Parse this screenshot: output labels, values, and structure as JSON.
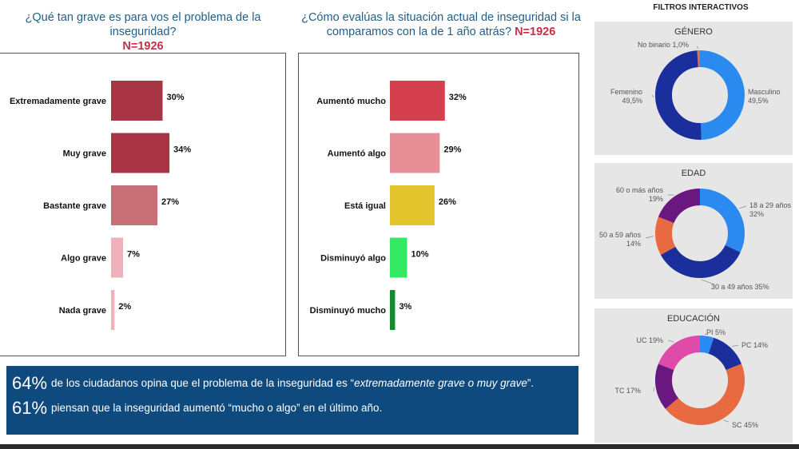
{
  "left_chart": {
    "question": "¿Qué tan grave es para vos el problema de la inseguridad?",
    "n_label": "N=1926",
    "categories": [
      "Extremadamente grave",
      "Muy grave",
      "Bastante grave",
      "Algo grave",
      "Nada grave"
    ],
    "values": [
      30,
      34,
      27,
      7,
      2
    ],
    "value_labels": [
      "30%",
      "34%",
      "27%",
      "7%",
      "2%"
    ],
    "colors": [
      "#a83344",
      "#a83344",
      "#c96f78",
      "#efb1bb",
      "#efb1bb"
    ]
  },
  "right_chart": {
    "question_line1": "¿Cómo evalúas la situación actual de inseguridad si la",
    "question_line2": "comparamos con la de 1 año atrás?",
    "n_label": "N=1926",
    "categories": [
      "Aumentó mucho",
      "Aumentó algo",
      "Está igual",
      "Disminuyó algo",
      "Disminuyó mucho"
    ],
    "values": [
      32,
      29,
      26,
      10,
      3
    ],
    "value_labels": [
      "32%",
      "29%",
      "26%",
      "10%",
      "3%"
    ],
    "colors": [
      "#d5404e",
      "#e68f97",
      "#e3c42c",
      "#35ea63",
      "#148a2e"
    ]
  },
  "summary": {
    "line1_value": "64%",
    "line1_text": "de los ciudadanos opina que el problema de la inseguridad es “",
    "line1_italic": "extremadamente grave o muy grave",
    "line1_end": "”.",
    "line2_value": "61%",
    "line2_text": "piensan que la inseguridad aumentó “mucho o algo” en el último año."
  },
  "filters": {
    "title": "FILTROS INTERACTIVOS",
    "genero": {
      "title": "GÉNERO",
      "segments": [
        {
          "label": "Masculino",
          "value_label": "49,5%",
          "value": 49.5,
          "color": "#2a8af0"
        },
        {
          "label": "Femenino",
          "value_label": "49,5%",
          "value": 49.5,
          "color": "#1b2f9c"
        },
        {
          "label": "No binario",
          "value_label": "1,0%",
          "value": 1.0,
          "color": "#e86a40"
        }
      ]
    },
    "edad": {
      "title": "EDAD",
      "segments": [
        {
          "label": "18 a 29 años",
          "value_label": "32%",
          "value": 32,
          "color": "#2a8af0"
        },
        {
          "label": "30 a 49 años",
          "value_label": "35%",
          "value": 35,
          "color": "#1b2f9c"
        },
        {
          "label": "50 a 59 años",
          "value_label": "14%",
          "value": 14,
          "color": "#e86a40"
        },
        {
          "label": "60 o más años",
          "value_label": "19%",
          "value": 19,
          "color": "#6a1880"
        }
      ]
    },
    "educacion": {
      "title": "EDUCACIÓN",
      "segments": [
        {
          "label": "PI",
          "value_label": "5%",
          "value": 5,
          "color": "#2a8af0"
        },
        {
          "label": "PC",
          "value_label": "14%",
          "value": 14,
          "color": "#1b2f9c"
        },
        {
          "label": "SC",
          "value_label": "45%",
          "value": 45,
          "color": "#e86a40"
        },
        {
          "label": "TC",
          "value_label": "17%",
          "value": 17,
          "color": "#6a1880"
        },
        {
          "label": "UC",
          "value_label": "19%",
          "value": 19,
          "color": "#e04aa8"
        }
      ]
    }
  },
  "chart_data": [
    {
      "type": "bar",
      "title": "¿Qué tan grave es para vos el problema de la inseguridad?",
      "categories": [
        "Extremadamente grave",
        "Muy grave",
        "Bastante grave",
        "Algo grave",
        "Nada grave"
      ],
      "values": [
        30,
        34,
        27,
        7,
        2
      ]
    },
    {
      "type": "bar",
      "title": "¿Cómo evalúas la situación actual de inseguridad si la comparamos con la de 1 año atrás?",
      "categories": [
        "Aumentó mucho",
        "Aumentó algo",
        "Está igual",
        "Disminuyó algo",
        "Disminuyó mucho"
      ],
      "values": [
        32,
        29,
        26,
        10,
        3
      ]
    },
    {
      "type": "pie",
      "title": "GÉNERO",
      "categories": [
        "Masculino",
        "Femenino",
        "No binario"
      ],
      "values": [
        49.5,
        49.5,
        1.0
      ]
    },
    {
      "type": "pie",
      "title": "EDAD",
      "categories": [
        "18 a 29 años",
        "30 a 49 años",
        "50 a 59 años",
        "60 o más años"
      ],
      "values": [
        32,
        35,
        14,
        19
      ]
    },
    {
      "type": "pie",
      "title": "EDUCACIÓN",
      "categories": [
        "PI",
        "PC",
        "SC",
        "TC",
        "UC"
      ],
      "values": [
        5,
        14,
        45,
        17,
        19
      ]
    }
  ]
}
